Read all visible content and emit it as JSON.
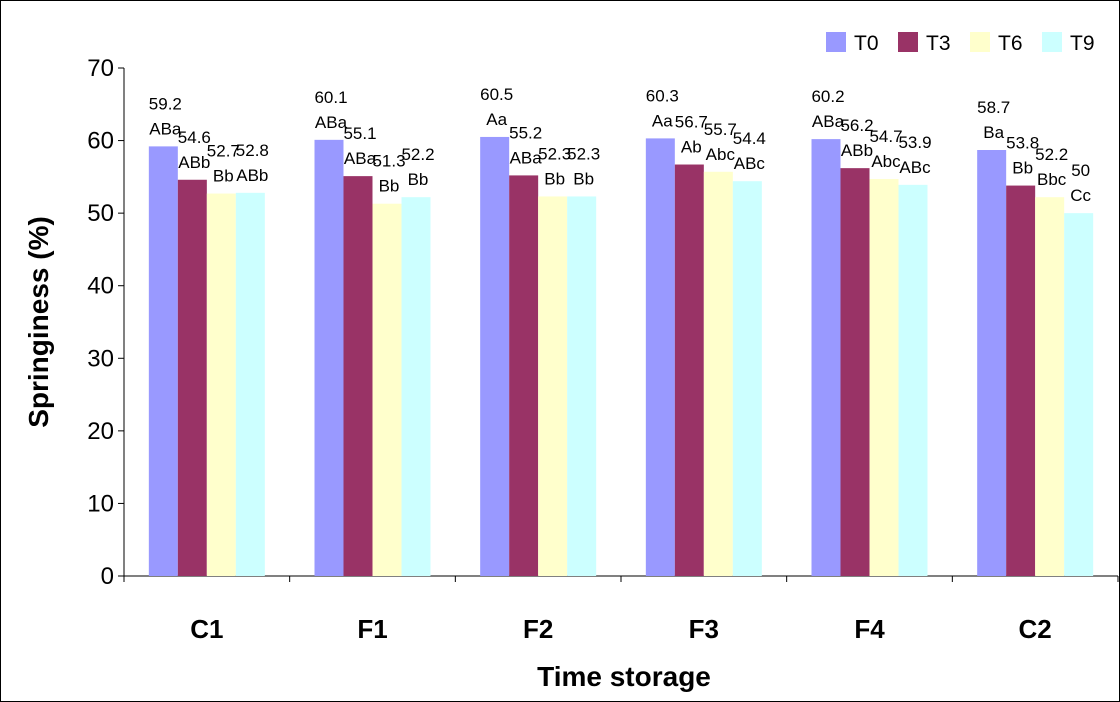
{
  "chart_data": {
    "type": "bar",
    "xlabel": "Time storage",
    "ylabel": "Springiness (%)",
    "ylim": [
      0,
      70
    ],
    "yticks": [
      0,
      10,
      20,
      30,
      40,
      50,
      60,
      70
    ],
    "grid": false,
    "legend_position": "top-right",
    "categories": [
      "C1",
      "F1",
      "F2",
      "F3",
      "F4",
      "C2"
    ],
    "series": [
      {
        "name": "T0",
        "color": "#9999ff",
        "values": [
          59.2,
          60.1,
          60.5,
          60.3,
          60.2,
          58.7
        ],
        "letters": [
          "ABa",
          "ABa",
          "Aa",
          "Aa",
          "ABa",
          "Ba"
        ]
      },
      {
        "name": "T3",
        "color": "#993366",
        "values": [
          54.6,
          55.1,
          55.2,
          56.7,
          56.2,
          53.8
        ],
        "letters": [
          "ABb",
          "ABa",
          "ABa",
          "Ab",
          "ABb",
          "Bb"
        ]
      },
      {
        "name": "T6",
        "color": "#ffffcc",
        "values": [
          52.7,
          51.3,
          52.3,
          55.7,
          54.7,
          52.2
        ],
        "letters": [
          "Bb",
          "Bb",
          "Bb",
          "Abc",
          "Abc",
          "Bbc"
        ]
      },
      {
        "name": "T9",
        "color": "#ccffff",
        "values": [
          52.8,
          52.2,
          52.3,
          54.4,
          53.9,
          50
        ],
        "letters": [
          "ABb",
          "Bb",
          "Bb",
          "ABc",
          "ABc",
          "Cc"
        ]
      }
    ]
  }
}
